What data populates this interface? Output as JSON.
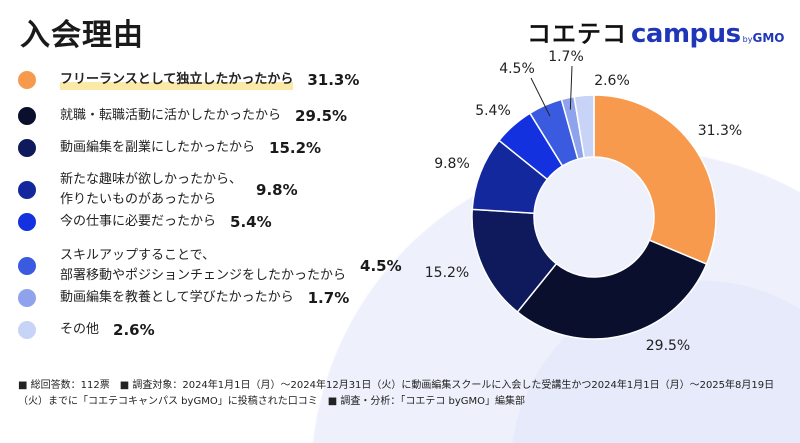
{
  "header": {
    "title": "入会理由"
  },
  "logo": {
    "jp": "コエテコ",
    "en": "campus",
    "by": "by",
    "gmo": "GMO"
  },
  "footnote": "■ 総回答数：112票　■ 調査対象：2024年1月1日（月）～2024年12月31日（火）に動画編集スクールに入会した受講生かつ2024年1月1日（月）～2025年8月19日（火）までに「コエテコキャンパス byGMO」に投稿された口コミ　■ 調査・分析：「コエテコ byGMO」編集部",
  "chart_data": {
    "type": "pie",
    "donut": true,
    "start": "top",
    "direction": "clockwise",
    "legend_placement": "left",
    "slices": [
      {
        "label": "フリーランスとして独立したかったから",
        "value": 31.3,
        "display": "31.3%",
        "color": "#F79A4E"
      },
      {
        "label": "就職・転職活動に活かしたかったから",
        "value": 29.5,
        "display": "29.5%",
        "color": "#0B0F2E"
      },
      {
        "label": "動画編集を副業にしたかったから",
        "value": 15.2,
        "display": "15.2%",
        "color": "#0E1A5C"
      },
      {
        "label": "新たな趣味が欲しかったから、\n作りたいものがあったから",
        "value": 9.8,
        "display": "9.8%",
        "color": "#14289E"
      },
      {
        "label": "今の仕事に必要だったから",
        "value": 5.4,
        "display": "5.4%",
        "color": "#1431E0"
      },
      {
        "label": "スキルアップすることで、\n部署移動やポジションチェンジをしたかったから",
        "value": 4.5,
        "display": "4.5%",
        "color": "#3A5BE0"
      },
      {
        "label": "動画編集を教養として学びたかったから",
        "value": 1.7,
        "display": "1.7%",
        "color": "#8FA3EC"
      },
      {
        "label": "その他",
        "value": 2.6,
        "display": "2.6%",
        "color": "#C8D3F8"
      }
    ]
  }
}
